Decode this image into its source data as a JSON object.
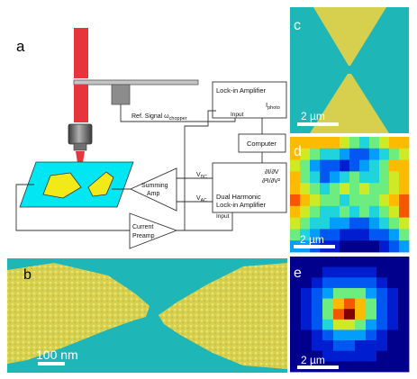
{
  "panels": {
    "a": {
      "letter": "a",
      "lockin": "Lock-in Amplifier",
      "input": "Input",
      "iphoto_base": "I",
      "iphoto_sub": "photo",
      "ref_signal_base": "Ref. Signal ω",
      "ref_signal_sub": "chopper",
      "computer": "Computer",
      "summing_line1": "Summing",
      "summing_line2": "Amp",
      "current_line1": "Current",
      "current_line2": "Preamp",
      "vdc_base": "V",
      "vdc_sub": "DC",
      "vac_base": "V",
      "vac_sub": "AC",
      "deriv1": "∂I/∂V",
      "deriv2": "∂²I/∂V²",
      "dual_line1": "Dual Harmonic",
      "dual_line2": "Lock-in Amplifier",
      "dual_input": "Input"
    },
    "b": {
      "letter": "b",
      "scale": "100 nm"
    },
    "c": {
      "letter": "c",
      "scale": "2 µm"
    },
    "d": {
      "letter": "d",
      "scale": "2 µm"
    },
    "e": {
      "letter": "e",
      "scale": "2 µm"
    }
  },
  "colors": {
    "teal": "#1eb6b6",
    "gold": "#d7d04e",
    "laser": "#e8343c",
    "cyan_substrate": "#00e6f2",
    "yellow_pad": "#f2ea18"
  },
  "maps": {
    "d_grid": [
      [
        8,
        8,
        8,
        8,
        8,
        7,
        6,
        5,
        6,
        7,
        8,
        8
      ],
      [
        8,
        7,
        6,
        5,
        5,
        4,
        3,
        3,
        4,
        5,
        6,
        7
      ],
      [
        7,
        6,
        4,
        3,
        3,
        2,
        3,
        4,
        5,
        6,
        8,
        8
      ],
      [
        8,
        6,
        5,
        3,
        4,
        5,
        6,
        5,
        5,
        6,
        7,
        8
      ],
      [
        8,
        7,
        6,
        5,
        6,
        7,
        6,
        7,
        6,
        6,
        7,
        8
      ],
      [
        9,
        8,
        7,
        6,
        6,
        5,
        6,
        6,
        6,
        7,
        8,
        9
      ],
      [
        8,
        7,
        6,
        5,
        5,
        6,
        5,
        6,
        5,
        6,
        7,
        9
      ],
      [
        7,
        6,
        5,
        5,
        4,
        4,
        3,
        3,
        4,
        5,
        6,
        7
      ],
      [
        6,
        5,
        4,
        3,
        3,
        2,
        2,
        2,
        3,
        3,
        4,
        6
      ],
      [
        4,
        4,
        3,
        2,
        2,
        1,
        1,
        1,
        1,
        2,
        3,
        4
      ]
    ],
    "e_grid": [
      [
        1,
        1,
        1,
        1,
        1,
        1,
        1,
        1,
        1,
        1,
        1
      ],
      [
        1,
        1,
        1,
        2,
        2,
        2,
        2,
        2,
        1,
        1,
        1
      ],
      [
        1,
        1,
        2,
        3,
        3,
        3,
        3,
        3,
        2,
        1,
        1
      ],
      [
        1,
        2,
        3,
        4,
        6,
        6,
        6,
        4,
        3,
        2,
        1
      ],
      [
        1,
        2,
        3,
        6,
        8,
        9,
        8,
        6,
        3,
        2,
        1
      ],
      [
        1,
        2,
        3,
        6,
        9,
        10,
        8,
        6,
        3,
        2,
        1
      ],
      [
        1,
        2,
        3,
        5,
        7,
        7,
        6,
        4,
        3,
        2,
        1
      ],
      [
        1,
        1,
        2,
        3,
        4,
        4,
        4,
        3,
        2,
        1,
        1
      ],
      [
        1,
        1,
        2,
        2,
        3,
        3,
        2,
        2,
        2,
        1,
        1
      ],
      [
        1,
        1,
        1,
        2,
        2,
        2,
        2,
        2,
        1,
        1,
        1
      ],
      [
        1,
        1,
        1,
        1,
        1,
        1,
        1,
        1,
        1,
        1,
        1
      ]
    ]
  }
}
